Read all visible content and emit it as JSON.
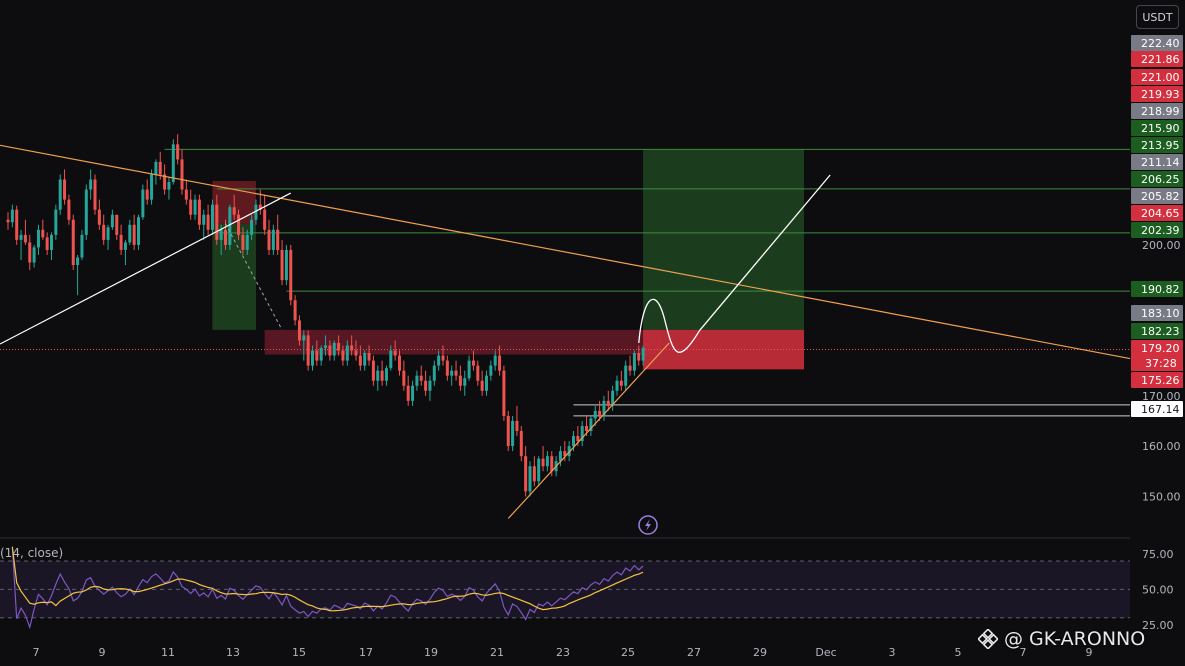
{
  "currency": "USDT",
  "indicator_label": "(14, close)",
  "watermark": "@ GK-ARONNO",
  "colors": {
    "bg": "#0d0d0f",
    "up": "#26a69a",
    "down": "#ef5350",
    "orange": "#f0a050",
    "rsi": "#7e57c2",
    "rsi_ma": "#f5c542",
    "target_zone": "#1e4620",
    "stop_zone": "#7a1f26"
  },
  "chart_data": [
    {
      "type": "candlestick",
      "title": "",
      "x_ticks": [
        "7",
        "9",
        "11",
        "13",
        "15",
        "17",
        "19",
        "21",
        "23",
        "25",
        "27",
        "29",
        "Dec",
        "3",
        "5",
        "7",
        "9"
      ],
      "y_ticks": [
        150.0,
        160.0,
        170.0,
        200.0
      ],
      "ylim": [
        140,
        225
      ],
      "price_tags": [
        {
          "value": 222.4,
          "label": "222.40",
          "style": "gray"
        },
        {
          "value": 221.86,
          "label": "221.86",
          "style": "red"
        },
        {
          "value": 221.0,
          "label": "221.00",
          "style": "red"
        },
        {
          "value": 219.93,
          "label": "219.93",
          "style": "red"
        },
        {
          "value": 218.99,
          "label": "218.99",
          "style": "gray"
        },
        {
          "value": 215.9,
          "label": "215.90",
          "style": "green"
        },
        {
          "value": 213.95,
          "label": "213.95",
          "style": "green"
        },
        {
          "value": 211.14,
          "label": "211.14",
          "style": "gray"
        },
        {
          "value": 206.25,
          "label": "206.25",
          "style": "green"
        },
        {
          "value": 205.82,
          "label": "205.82",
          "style": "gray"
        },
        {
          "value": 204.65,
          "label": "204.65",
          "style": "red"
        },
        {
          "value": 202.39,
          "label": "202.39",
          "style": "green"
        },
        {
          "value": 190.82,
          "label": "190.82",
          "style": "green"
        },
        {
          "value": 183.1,
          "label": "183.10",
          "style": "gray"
        },
        {
          "value": 182.23,
          "label": "182.23",
          "style": "green"
        },
        {
          "value": 179.2,
          "label": "179.20",
          "style": "red"
        },
        {
          "value": 175.26,
          "label": "175.26",
          "style": "red"
        },
        {
          "value": 167.14,
          "label": "167.14",
          "style": "white"
        }
      ],
      "countdown": "37:28",
      "candles": [
        [
          205,
          206.5,
          203,
          204.5
        ],
        [
          204.5,
          208,
          203.5,
          207
        ],
        [
          207,
          207.8,
          200,
          201
        ],
        [
          201,
          203,
          197,
          202
        ],
        [
          202,
          205,
          200,
          200.5
        ],
        [
          200.5,
          202,
          195,
          196.5
        ],
        [
          196.5,
          200,
          195.5,
          199.5
        ],
        [
          199.5,
          204,
          198,
          203
        ],
        [
          203,
          205,
          201,
          201.5
        ],
        [
          201.5,
          202.5,
          198,
          199
        ],
        [
          199,
          202.5,
          197,
          202
        ],
        [
          202,
          208,
          201,
          207
        ],
        [
          207,
          214,
          206,
          213
        ],
        [
          213,
          215,
          208,
          209
        ],
        [
          209,
          210,
          204,
          205
        ],
        [
          205,
          206,
          195,
          196
        ],
        [
          196,
          198,
          190,
          197.5
        ],
        [
          197.5,
          203,
          197,
          202
        ],
        [
          202,
          212,
          201,
          211
        ],
        [
          211,
          215,
          209,
          213
        ],
        [
          213,
          214,
          206,
          207
        ],
        [
          207,
          209,
          203,
          204
        ],
        [
          204,
          206,
          200,
          201
        ],
        [
          201,
          204,
          199,
          203.5
        ],
        [
          203.5,
          207,
          203,
          206
        ],
        [
          206,
          205.8,
          201,
          202
        ],
        [
          202,
          204,
          198,
          199
        ],
        [
          199,
          201,
          196,
          200.5
        ],
        [
          200.5,
          205,
          200,
          204
        ],
        [
          204,
          206,
          199,
          200
        ],
        [
          200,
          206,
          199,
          205.5
        ],
        [
          205.5,
          212,
          205,
          211
        ],
        [
          211,
          213,
          208,
          209
        ],
        [
          209,
          215,
          208,
          214
        ],
        [
          214,
          217,
          212,
          216.5
        ],
        [
          216.5,
          218.5,
          213,
          214
        ],
        [
          214,
          216,
          210,
          211
        ],
        [
          211,
          213.5,
          209,
          212.5
        ],
        [
          212.5,
          221,
          212,
          220
        ],
        [
          220,
          222,
          216,
          217
        ],
        [
          217,
          219,
          210,
          211
        ],
        [
          211,
          213,
          208,
          209
        ],
        [
          209,
          211,
          205,
          206
        ],
        [
          206,
          210,
          205,
          209
        ],
        [
          209,
          210,
          203,
          204
        ],
        [
          204,
          207,
          201,
          206
        ],
        [
          206,
          208,
          202,
          203
        ],
        [
          203,
          209,
          202,
          208
        ],
        [
          208,
          210,
          200,
          201
        ],
        [
          201,
          204,
          198,
          203
        ],
        [
          203,
          205,
          199,
          200
        ],
        [
          200,
          208,
          199,
          207.5
        ],
        [
          207.5,
          210,
          205,
          206
        ],
        [
          206,
          207,
          201,
          202
        ],
        [
          202,
          203.5,
          198,
          199
        ],
        [
          199,
          203,
          198,
          202
        ],
        [
          202,
          206,
          201,
          205
        ],
        [
          205,
          209,
          204,
          208
        ],
        [
          208,
          211,
          206,
          207
        ],
        [
          207,
          210,
          202,
          203
        ],
        [
          203,
          205,
          198,
          199
        ],
        [
          199,
          204,
          198,
          203
        ],
        [
          203,
          206,
          198,
          199
        ],
        [
          199,
          201,
          192,
          193
        ],
        [
          193,
          200,
          192,
          199
        ],
        [
          199,
          200,
          188,
          189
        ],
        [
          189,
          190,
          184,
          185
        ],
        [
          185,
          186,
          180,
          181
        ],
        [
          181,
          183,
          177,
          182
        ],
        [
          182,
          183,
          175,
          176
        ],
        [
          176,
          180,
          175,
          179
        ],
        [
          179,
          181,
          176,
          177
        ],
        [
          177,
          180,
          176,
          179.5
        ],
        [
          179.5,
          182,
          178,
          180
        ],
        [
          180,
          181,
          177,
          178
        ],
        [
          178,
          181,
          177,
          180.5
        ],
        [
          180.5,
          182,
          178,
          179
        ],
        [
          179,
          180,
          176,
          177
        ],
        [
          177,
          181,
          176,
          180
        ],
        [
          180,
          182,
          178,
          179
        ],
        [
          179,
          181,
          177,
          178
        ],
        [
          178,
          180,
          175,
          176
        ],
        [
          176,
          179,
          175,
          178.5
        ],
        [
          178.5,
          180,
          176,
          177
        ],
        [
          177,
          178,
          172,
          173
        ],
        [
          173,
          176,
          171,
          175
        ],
        [
          175,
          177,
          172,
          173
        ],
        [
          173,
          176,
          172,
          175.5
        ],
        [
          175.5,
          180,
          175,
          179
        ],
        [
          179,
          181,
          177,
          178
        ],
        [
          178,
          179,
          174,
          175
        ],
        [
          175,
          177,
          171,
          172
        ],
        [
          172,
          174,
          168,
          169
        ],
        [
          169,
          173,
          168,
          172
        ],
        [
          172,
          175,
          171,
          174
        ],
        [
          174,
          176,
          172,
          173
        ],
        [
          173,
          175,
          170,
          171
        ],
        [
          171,
          174,
          169,
          173
        ],
        [
          173,
          177,
          172,
          176
        ],
        [
          176,
          179,
          175,
          178
        ],
        [
          178,
          180,
          176,
          177
        ],
        [
          177,
          178,
          173,
          174
        ],
        [
          174,
          176,
          172,
          175
        ],
        [
          175,
          177,
          173,
          174
        ],
        [
          174,
          176,
          171,
          172
        ],
        [
          172,
          175,
          170,
          173.5
        ],
        [
          173.5,
          178,
          173,
          177
        ],
        [
          177,
          179,
          175,
          176
        ],
        [
          176,
          177,
          172,
          173
        ],
        [
          173,
          175,
          170,
          171
        ],
        [
          171,
          175,
          170,
          174
        ],
        [
          174,
          177,
          173,
          176
        ],
        [
          176,
          179,
          175,
          178
        ],
        [
          178,
          180,
          174,
          175
        ],
        [
          175,
          176,
          165,
          166
        ],
        [
          166,
          167,
          159,
          160
        ],
        [
          160,
          166,
          159,
          165
        ],
        [
          165,
          168,
          162,
          163
        ],
        [
          163,
          164,
          157,
          158
        ],
        [
          158,
          160,
          150,
          151
        ],
        [
          151,
          157,
          150,
          156
        ],
        [
          156,
          158,
          152,
          153
        ],
        [
          153,
          158,
          152,
          157.5
        ],
        [
          157.5,
          160,
          155,
          156
        ],
        [
          156,
          159,
          155,
          158
        ],
        [
          158,
          159,
          154,
          155
        ],
        [
          155,
          158,
          154,
          157
        ],
        [
          157,
          160,
          156,
          159
        ],
        [
          159,
          161,
          157,
          158
        ],
        [
          158,
          161,
          157,
          160
        ],
        [
          160,
          163,
          159,
          162
        ],
        [
          162,
          164,
          160,
          161
        ],
        [
          161,
          165,
          160,
          164
        ],
        [
          164,
          166,
          162,
          163
        ],
        [
          163,
          166,
          162,
          165.5
        ],
        [
          165.5,
          168,
          164,
          167
        ],
        [
          167,
          169,
          165,
          166
        ],
        [
          166,
          170,
          165,
          169
        ],
        [
          169,
          171,
          167,
          168
        ],
        [
          168,
          172,
          167,
          171
        ],
        [
          171,
          174,
          170,
          173
        ],
        [
          173,
          175,
          171,
          172
        ],
        [
          172,
          177,
          171,
          176
        ],
        [
          176,
          178,
          174,
          175
        ],
        [
          175,
          179,
          174,
          178.5
        ],
        [
          178.5,
          180,
          176,
          177
        ],
        [
          177,
          180,
          176,
          179.5
        ]
      ],
      "levels": [
        {
          "value": 218.99,
          "x_start_candle": 36
        },
        {
          "value": 211.14,
          "x_start_candle": 48
        },
        {
          "value": 202.39,
          "x_start_candle": 48
        },
        {
          "value": 190.82,
          "x_start_candle": 64
        },
        {
          "value": 168.2,
          "x_start_candle": 130
        },
        {
          "value": 166.0,
          "x_start_candle": 130
        }
      ],
      "zones": [
        {
          "kind": "stop",
          "from_candle": 47,
          "to_candle": 57,
          "y_top": 212.7,
          "y_bottom": 204.2
        },
        {
          "kind": "target",
          "from_candle": 47,
          "to_candle": 57,
          "y_top": 204.2,
          "y_bottom": 183.1
        },
        {
          "kind": "resistance",
          "from_candle": 59,
          "to_candle": 150,
          "y_top": 183.1,
          "y_bottom": 178.2
        },
        {
          "kind": "target",
          "from_candle": 146,
          "to_candle": 183,
          "y_top": 218.99,
          "y_bottom": 183.1
        },
        {
          "kind": "stop",
          "from_candle": 146,
          "to_candle": 183,
          "y_top": 183.1,
          "y_bottom": 175.26
        }
      ],
      "rsi": {
        "y_ticks": [
          75.0,
          50.0,
          25.0
        ],
        "ylim": [
          20,
          82
        ],
        "band": [
          30,
          70
        ]
      }
    }
  ]
}
